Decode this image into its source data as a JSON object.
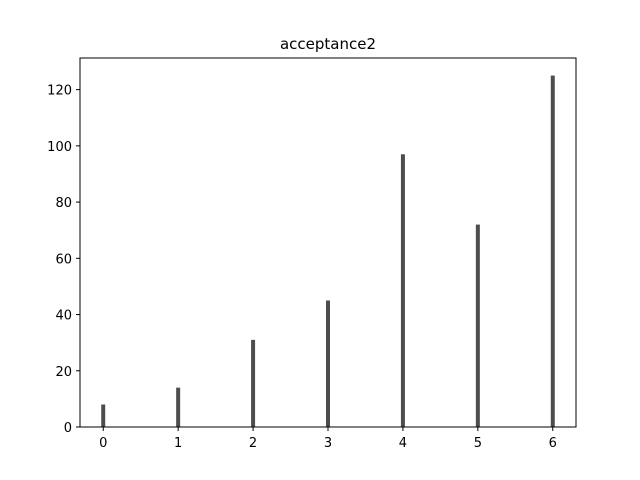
{
  "chart_data": {
    "type": "bar",
    "title": "acceptance2",
    "xlabel": "",
    "ylabel": "",
    "x": [
      0,
      1,
      2,
      3,
      4,
      5,
      6
    ],
    "values": [
      8,
      14,
      31,
      45,
      97,
      72,
      125
    ],
    "x_ticks": [
      "0",
      "1",
      "2",
      "3",
      "4",
      "5",
      "6"
    ],
    "y_ticks": [
      "0",
      "20",
      "40",
      "60",
      "80",
      "100",
      "120"
    ],
    "xlim": [
      -0.31,
      6.31
    ],
    "ylim": [
      0,
      131.25
    ],
    "grid": false,
    "bar_color": "#4d4d4d"
  }
}
